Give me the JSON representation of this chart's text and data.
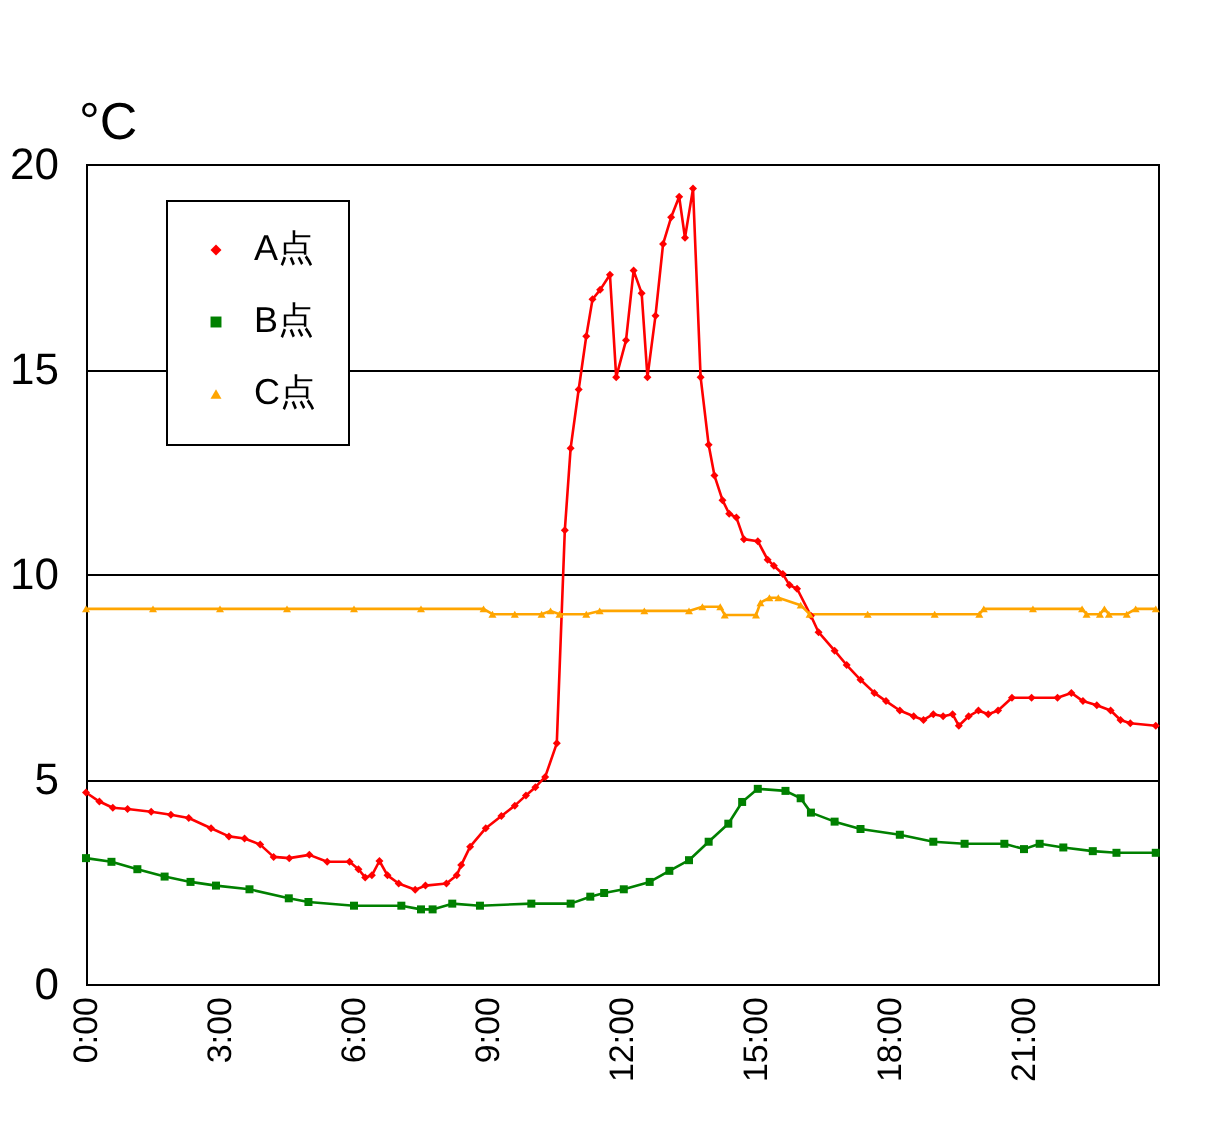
{
  "chart_data": {
    "type": "line",
    "ylabel": "°C",
    "xlim": [
      0,
      24
    ],
    "xticks": [
      {
        "value": 0,
        "label": "0:00"
      },
      {
        "value": 3,
        "label": "3:00"
      },
      {
        "value": 6,
        "label": "6:00"
      },
      {
        "value": 9,
        "label": "9:00"
      },
      {
        "value": 12,
        "label": "12:00"
      },
      {
        "value": 15,
        "label": "15:00"
      },
      {
        "value": 18,
        "label": "18:00"
      },
      {
        "value": 21,
        "label": "21:00"
      }
    ],
    "ylim": [
      0,
      20
    ],
    "yticks": [
      0,
      5,
      10,
      15,
      20
    ],
    "grid": "y",
    "legend": "top left",
    "series": [
      {
        "name": "A点",
        "color": "#ff0000",
        "marker": "diamond",
        "x": [
          0,
          0.3,
          0.6,
          0.93,
          1.46,
          1.9,
          2.3,
          2.8,
          3.2,
          3.55,
          3.9,
          4.2,
          4.55,
          5.0,
          5.4,
          5.9,
          6.1,
          6.25,
          6.4,
          6.57,
          6.75,
          7.0,
          7.37,
          7.6,
          8.07,
          8.3,
          8.4,
          8.6,
          8.95,
          9.3,
          9.6,
          9.85,
          10.06,
          10.28,
          10.54,
          10.72,
          10.85,
          11.03,
          11.2,
          11.34,
          11.51,
          11.73,
          11.87,
          12.09,
          12.26,
          12.44,
          12.57,
          12.75,
          12.92,
          13.1,
          13.28,
          13.41,
          13.59,
          13.76,
          13.94,
          14.07,
          14.25,
          14.4,
          14.56,
          14.73,
          15.04,
          15.26,
          15.4,
          15.6,
          15.75,
          15.92,
          16.23,
          16.4,
          16.76,
          17.03,
          17.34,
          17.65,
          17.91,
          18.22,
          18.53,
          18.75,
          18.97,
          19.19,
          19.4,
          19.54,
          19.76,
          19.98,
          20.2,
          20.42,
          20.73,
          21.17,
          21.75,
          22.06,
          22.32,
          22.63,
          22.94,
          23.16,
          23.38,
          23.95
        ],
        "values": [
          4.67,
          4.45,
          4.3,
          4.27,
          4.2,
          4.13,
          4.05,
          3.8,
          3.6,
          3.55,
          3.4,
          3.1,
          3.07,
          3.15,
          2.98,
          2.98,
          2.8,
          2.6,
          2.65,
          3.0,
          2.65,
          2.45,
          2.3,
          2.4,
          2.45,
          2.65,
          2.9,
          3.35,
          3.8,
          4.1,
          4.35,
          4.6,
          4.8,
          5.05,
          5.87,
          11.07,
          13.07,
          14.5,
          15.8,
          16.7,
          16.93,
          17.3,
          14.8,
          15.7,
          17.4,
          16.85,
          14.8,
          16.3,
          18.05,
          18.7,
          19.2,
          18.2,
          19.4,
          14.8,
          13.15,
          12.4,
          11.8,
          11.47,
          11.38,
          10.85,
          10.8,
          10.35,
          10.2,
          10.0,
          9.73,
          9.64,
          8.98,
          8.58,
          8.13,
          7.78,
          7.42,
          7.1,
          6.9,
          6.67,
          6.53,
          6.44,
          6.58,
          6.53,
          6.58,
          6.3,
          6.53,
          6.67,
          6.58,
          6.67,
          6.98,
          6.98,
          6.98,
          7.1,
          6.9,
          6.8,
          6.67,
          6.44,
          6.36,
          6.3
        ]
      },
      {
        "name": "B点",
        "color": "#008000",
        "marker": "square",
        "x": [
          0,
          0.57,
          1.15,
          1.76,
          2.34,
          2.91,
          3.66,
          4.54,
          4.98,
          6.0,
          7.06,
          7.5,
          7.76,
          8.2,
          8.82,
          9.97,
          10.85,
          11.29,
          11.6,
          12.04,
          12.62,
          13.06,
          13.5,
          13.94,
          14.38,
          14.69,
          15.04,
          15.66,
          16.0,
          16.23,
          16.76,
          17.34,
          18.22,
          18.97,
          19.67,
          20.56,
          21.0,
          21.35,
          21.88,
          22.54,
          23.07,
          23.95
        ],
        "values": [
          3.07,
          2.98,
          2.8,
          2.62,
          2.49,
          2.4,
          2.31,
          2.09,
          2.0,
          1.91,
          1.91,
          1.82,
          1.82,
          1.96,
          1.91,
          1.96,
          1.96,
          2.13,
          2.22,
          2.31,
          2.49,
          2.76,
          3.02,
          3.47,
          3.91,
          4.44,
          4.76,
          4.71,
          4.53,
          4.18,
          3.96,
          3.78,
          3.64,
          3.47,
          3.42,
          3.42,
          3.29,
          3.42,
          3.33,
          3.24,
          3.2,
          3.2
        ]
      },
      {
        "name": "C点",
        "color": "#ffa500",
        "marker": "triangle",
        "x": [
          0,
          1.5,
          3,
          4.5,
          6,
          7.5,
          8.9,
          9.1,
          9.6,
          10.2,
          10.4,
          10.6,
          11.2,
          11.5,
          12.5,
          13.5,
          13.8,
          14.2,
          14.3,
          15.0,
          15.1,
          15.3,
          15.5,
          16.0,
          16.2,
          17.5,
          19.0,
          20.0,
          20.1,
          21.2,
          22.3,
          22.4,
          22.7,
          22.8,
          22.9,
          23.3,
          23.5,
          23.95
        ],
        "values": [
          9.15,
          9.15,
          9.15,
          9.15,
          9.15,
          9.15,
          9.15,
          9.02,
          9.02,
          9.02,
          9.1,
          9.02,
          9.02,
          9.1,
          9.1,
          9.1,
          9.2,
          9.2,
          9.0,
          9.0,
          9.3,
          9.42,
          9.42,
          9.24,
          9.02,
          9.02,
          9.02,
          9.02,
          9.15,
          9.15,
          9.15,
          9.02,
          9.02,
          9.15,
          9.02,
          9.02,
          9.15,
          9.15
        ]
      }
    ]
  }
}
